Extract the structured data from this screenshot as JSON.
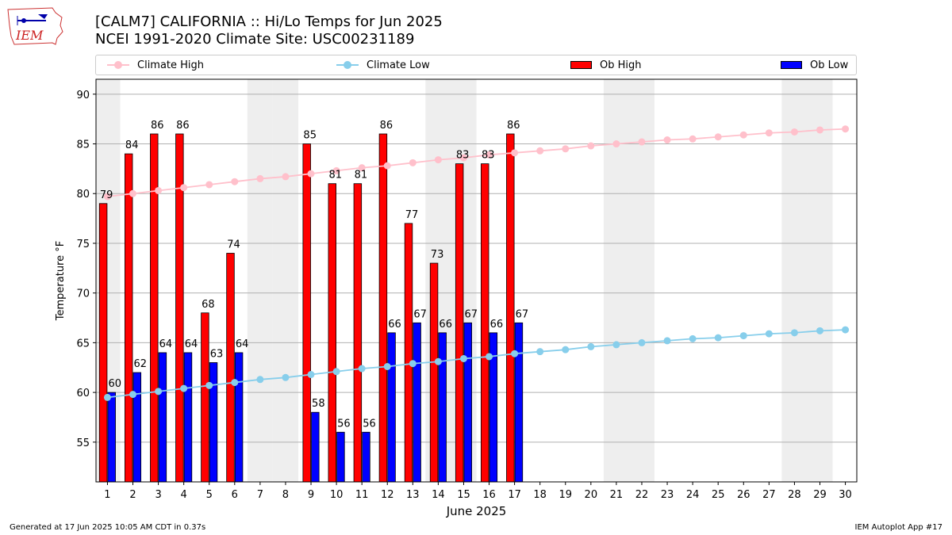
{
  "header": {
    "title_line1": "[CALM7] CALIFORNIA :: Hi/Lo Temps for Jun 2025",
    "title_line2": "NCEI 1991-2020 Climate Site: USC00231189",
    "logo_text": "IEM"
  },
  "legend": {
    "climate_high": "Climate High",
    "climate_low": "Climate Low",
    "ob_high": "Ob High",
    "ob_low": "Ob Low"
  },
  "colors": {
    "climate_high": "#ffc0cb",
    "climate_low": "#87ceeb",
    "ob_high": "#ff0000",
    "ob_low": "#0000ff",
    "weekend_band": "#eeeeee",
    "grid": "#b0b0b0"
  },
  "footer": {
    "generated": "Generated at 17 Jun 2025 10:05 AM CDT in 0.37s",
    "app": "IEM Autoplot App #17"
  },
  "chart_data": {
    "type": "bar",
    "title": "[CALM7] CALIFORNIA :: Hi/Lo Temps for Jun 2025",
    "subtitle": "NCEI 1991-2020 Climate Site: USC00231189",
    "xlabel": "June 2025",
    "ylabel": "Temperature °F",
    "ylim": [
      51,
      91.5
    ],
    "yticks": [
      55,
      60,
      65,
      70,
      75,
      80,
      85,
      90
    ],
    "grid": "horizontal",
    "legend_position": "top",
    "categories": [
      "1",
      "2",
      "3",
      "4",
      "5",
      "6",
      "7",
      "8",
      "9",
      "10",
      "11",
      "12",
      "13",
      "14",
      "15",
      "16",
      "17",
      "18",
      "19",
      "20",
      "21",
      "22",
      "23",
      "24",
      "25",
      "26",
      "27",
      "28",
      "29",
      "30"
    ],
    "weekend_days": [
      1,
      7,
      8,
      14,
      15,
      21,
      22,
      28,
      29
    ],
    "series": [
      {
        "name": "Ob High",
        "kind": "bar",
        "values": [
          79,
          84,
          86,
          86,
          68,
          74,
          null,
          null,
          85,
          81,
          81,
          86,
          77,
          73,
          83,
          83,
          86,
          null,
          null,
          null,
          null,
          null,
          null,
          null,
          null,
          null,
          null,
          null,
          null,
          null
        ]
      },
      {
        "name": "Ob Low",
        "kind": "bar",
        "values": [
          60,
          62,
          64,
          64,
          63,
          64,
          null,
          null,
          58,
          56,
          56,
          66,
          67,
          66,
          67,
          66,
          67,
          null,
          null,
          null,
          null,
          null,
          null,
          null,
          null,
          null,
          null,
          null,
          null,
          null
        ]
      },
      {
        "name": "Climate High",
        "kind": "line",
        "values": [
          79.7,
          80.0,
          80.3,
          80.6,
          80.9,
          81.2,
          81.5,
          81.7,
          82.0,
          82.3,
          82.6,
          82.8,
          83.1,
          83.4,
          83.6,
          83.9,
          84.1,
          84.3,
          84.5,
          84.8,
          85.0,
          85.2,
          85.4,
          85.5,
          85.7,
          85.9,
          86.1,
          86.2,
          86.4,
          86.5
        ]
      },
      {
        "name": "Climate Low",
        "kind": "line",
        "values": [
          59.5,
          59.8,
          60.1,
          60.4,
          60.7,
          61.0,
          61.3,
          61.5,
          61.8,
          62.1,
          62.4,
          62.6,
          62.9,
          63.1,
          63.4,
          63.6,
          63.9,
          64.1,
          64.3,
          64.6,
          64.8,
          65.0,
          65.2,
          65.4,
          65.5,
          65.7,
          65.9,
          66.0,
          66.2,
          66.3
        ]
      }
    ]
  }
}
